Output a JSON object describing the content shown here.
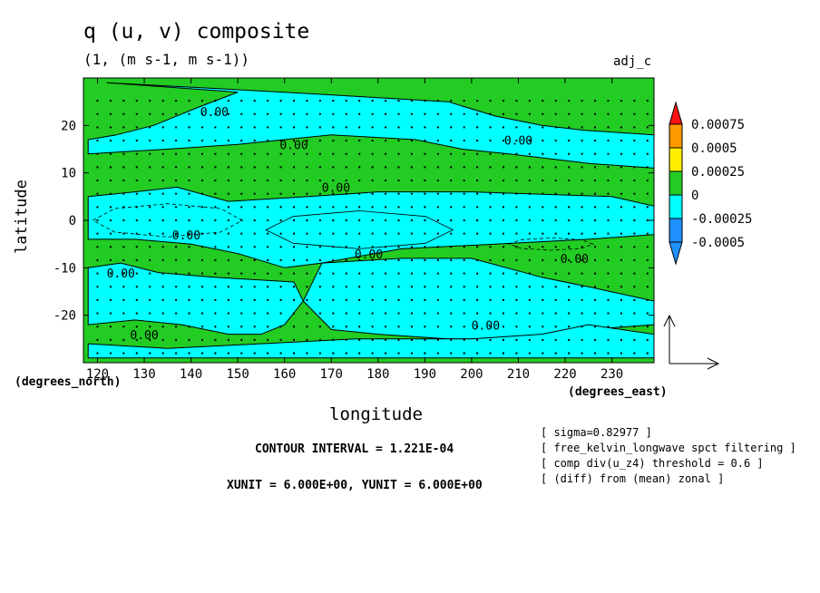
{
  "header": {
    "title": "q (u, v) composite",
    "subtitle": "(1, (m s-1, m s-1))",
    "tag": "adj_c"
  },
  "axes": {
    "xlabel": "longitude",
    "ylabel": "latitude",
    "x_units_note": "(degrees_north)",
    "y_units_note": "(degrees_east)"
  },
  "footer": {
    "contour_interval": "CONTOUR INTERVAL = 1.221E-04",
    "vector_units": "XUNIT = 6.000E+00, YUNIT = 6.000E+00",
    "notes": [
      "[ sigma=0.82977 ]",
      "[ free_kelvin_longwave spct filtering ]",
      "[ comp div(u_z4) threshold = 0.6 ]",
      "[ (diff) from (mean) zonal ]"
    ]
  },
  "colors": {
    "positive_fill": "#22cc22",
    "negative_fill": "#00ffff",
    "bar_red": "#ff1111",
    "bar_orange": "#ff9900",
    "bar_yellow": "#ffee00",
    "bar_green": "#22cc22",
    "bar_cyan": "#00ffff",
    "bar_blue": "#1e90ff"
  },
  "chart_data": {
    "type": "heatmap",
    "xlim": [
      117,
      239
    ],
    "ylim": [
      -30,
      30
    ],
    "xticks": [
      120,
      130,
      140,
      150,
      160,
      170,
      180,
      190,
      200,
      210,
      220,
      230
    ],
    "yticks": [
      -20,
      -10,
      0,
      10,
      20
    ],
    "contour_label": "0.00",
    "colorbar": {
      "ticks": [
        "0.00075",
        "0.0005",
        "0.00025",
        "0",
        "-0.00025",
        "-0.0005"
      ]
    },
    "regions": [
      {
        "sign": "negative",
        "desc": "northern cyan band",
        "pts": [
          [
            122,
            29
          ],
          [
            160,
            27
          ],
          [
            195,
            25
          ],
          [
            205,
            22
          ],
          [
            215,
            20
          ],
          [
            224,
            19
          ],
          [
            239,
            18
          ],
          [
            239,
            11
          ],
          [
            225,
            12
          ],
          [
            208,
            14
          ],
          [
            198,
            15
          ],
          [
            188,
            17
          ],
          [
            170,
            18
          ],
          [
            150,
            16
          ],
          [
            135,
            15
          ],
          [
            118,
            14
          ],
          [
            118,
            17
          ],
          [
            124,
            18
          ],
          [
            132,
            20
          ],
          [
            142,
            24
          ],
          [
            150,
            27
          ]
        ]
      },
      {
        "sign": "negative",
        "desc": "upper mid cyan",
        "pts": [
          [
            118,
            5
          ],
          [
            128,
            6
          ],
          [
            137,
            7
          ],
          [
            148,
            4
          ],
          [
            165,
            5
          ],
          [
            180,
            6
          ],
          [
            200,
            6
          ],
          [
            230,
            5
          ],
          [
            239,
            3
          ],
          [
            239,
            -3
          ],
          [
            225,
            -4
          ],
          [
            205,
            -5
          ],
          [
            185,
            -6
          ],
          [
            168,
            -9
          ],
          [
            160,
            -10
          ],
          [
            150,
            -7
          ],
          [
            140,
            -5
          ],
          [
            128,
            -4
          ],
          [
            118,
            -4
          ]
        ]
      },
      {
        "sign": "negative",
        "desc": "lower mid cyan",
        "pts": [
          [
            118,
            -10
          ],
          [
            125,
            -9
          ],
          [
            133,
            -11
          ],
          [
            145,
            -12
          ],
          [
            162,
            -13
          ],
          [
            164,
            -17
          ],
          [
            160,
            -22
          ],
          [
            155,
            -24
          ],
          [
            148,
            -24
          ],
          [
            138,
            -22
          ],
          [
            128,
            -21
          ],
          [
            118,
            -22
          ]
        ]
      },
      {
        "sign": "negative",
        "desc": "southeast cyan",
        "pts": [
          [
            168,
            -9
          ],
          [
            185,
            -8
          ],
          [
            200,
            -8
          ],
          [
            215,
            -12
          ],
          [
            225,
            -14
          ],
          [
            239,
            -17
          ],
          [
            239,
            -22
          ],
          [
            225,
            -23
          ],
          [
            210,
            -25
          ],
          [
            195,
            -25
          ],
          [
            180,
            -24
          ],
          [
            170,
            -23
          ],
          [
            164,
            -17
          ]
        ]
      },
      {
        "sign": "negative",
        "desc": "southern cyan",
        "pts": [
          [
            118,
            -26
          ],
          [
            135,
            -27
          ],
          [
            155,
            -26
          ],
          [
            175,
            -25
          ],
          [
            200,
            -25
          ],
          [
            215,
            -24
          ],
          [
            225,
            -22
          ],
          [
            239,
            -24
          ],
          [
            239,
            -29
          ],
          [
            118,
            -29
          ]
        ]
      }
    ],
    "dashed_ovals": [
      {
        "cx": 135,
        "cy": 0,
        "rx": 16,
        "ry": 3.5
      },
      {
        "cx": 217,
        "cy": -5,
        "rx": 9,
        "ry": 1.3
      }
    ],
    "solid_ovals": [
      {
        "cx": 176,
        "cy": -2,
        "rx": 20,
        "ry": 4
      }
    ]
  }
}
